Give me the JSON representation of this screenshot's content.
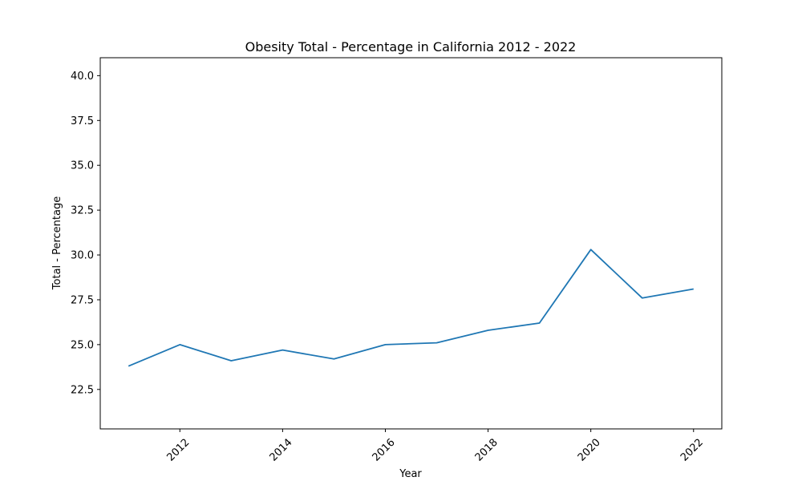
{
  "chart_data": {
    "type": "line",
    "title": "Obesity Total - Percentage in California 2012 - 2022",
    "xlabel": "Year",
    "ylabel": "Total - Percentage",
    "xlim": [
      2010.45,
      2022.55
    ],
    "ylim": [
      20.3,
      41.0
    ],
    "xticks": [
      2012,
      2014,
      2016,
      2018,
      2020,
      2022
    ],
    "xtick_labels": [
      "2012",
      "2014",
      "2016",
      "2018",
      "2020",
      "2022"
    ],
    "yticks": [
      22.5,
      25.0,
      27.5,
      30.0,
      32.5,
      35.0,
      37.5,
      40.0
    ],
    "ytick_labels": [
      "22.5",
      "25.0",
      "27.5",
      "30.0",
      "32.5",
      "35.0",
      "37.5",
      "40.0"
    ],
    "grid": false,
    "line_color": "#1f77b4",
    "series": [
      {
        "x": [
          2011,
          2012,
          2013,
          2014,
          2015,
          2016,
          2017,
          2018,
          2019,
          2020,
          2021,
          2022
        ],
        "values": [
          23.8,
          25.0,
          24.1,
          24.7,
          24.2,
          25.0,
          25.1,
          25.8,
          26.2,
          30.3,
          27.6,
          28.1
        ]
      }
    ]
  }
}
